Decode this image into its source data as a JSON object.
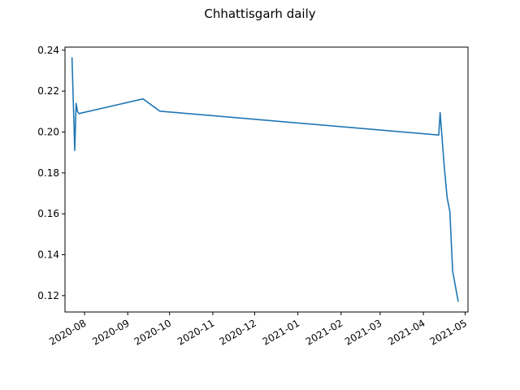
{
  "chart_data": {
    "type": "line",
    "title": "Chhattisgarh daily",
    "xlabel": "",
    "ylabel": "",
    "grid": false,
    "legend": "none",
    "x_type": "date",
    "xlim": [
      "2020-07-18",
      "2021-05-03"
    ],
    "ylim": [
      0.112,
      0.2415
    ],
    "x_ticks": [
      "2020-08",
      "2020-09",
      "2020-10",
      "2020-11",
      "2020-12",
      "2021-01",
      "2021-02",
      "2021-03",
      "2021-04",
      "2021-05"
    ],
    "x_tick_dates": [
      "2020-08-01",
      "2020-09-01",
      "2020-10-01",
      "2020-11-01",
      "2020-12-01",
      "2021-01-01",
      "2021-02-01",
      "2021-03-01",
      "2021-04-01",
      "2021-05-01"
    ],
    "y_ticks": [
      "0.12",
      "0.14",
      "0.16",
      "0.18",
      "0.20",
      "0.22",
      "0.24"
    ],
    "y_tick_values": [
      0.12,
      0.14,
      0.16,
      0.18,
      0.2,
      0.22,
      0.24
    ],
    "series": [
      {
        "color": "#1f77b4",
        "x": [
          "2020-07-23",
          "2020-07-25",
          "2020-07-26",
          "2020-07-27",
          "2020-07-28",
          "2020-09-12",
          "2020-09-24",
          "2021-04-12",
          "2021-04-13",
          "2021-04-16",
          "2021-04-18",
          "2021-04-20",
          "2021-04-22",
          "2021-04-26"
        ],
        "y": [
          0.2365,
          0.191,
          0.214,
          0.21,
          0.209,
          0.2162,
          0.2102,
          0.1985,
          0.2095,
          0.183,
          0.168,
          0.161,
          0.132,
          0.117
        ]
      }
    ]
  }
}
